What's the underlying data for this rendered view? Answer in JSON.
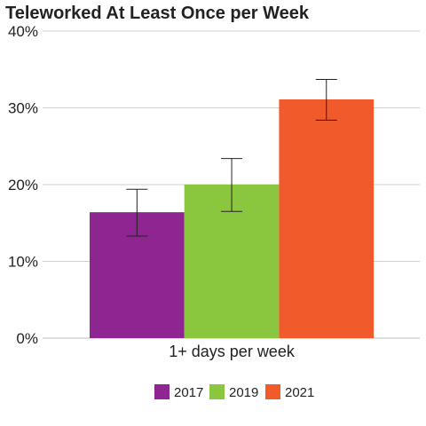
{
  "chart_data": {
    "type": "bar",
    "title": "Teleworked At Least Once per Week",
    "categories": [
      "1+ days per week"
    ],
    "ylim": [
      0,
      40
    ],
    "yticks": [
      "0%",
      "10%",
      "20%",
      "30%",
      "40%"
    ],
    "y_tick_values": [
      0,
      10,
      20,
      30,
      40
    ],
    "grid": true,
    "legend_position": "bottom",
    "series": [
      {
        "name": "2017",
        "color": "#8e2591",
        "values": [
          16.4
        ],
        "error_low": [
          13.3
        ],
        "error_high": [
          19.4
        ]
      },
      {
        "name": "2019",
        "color": "#8bc63f",
        "values": [
          20.0
        ],
        "error_low": [
          16.5
        ],
        "error_high": [
          23.4
        ]
      },
      {
        "name": "2021",
        "color": "#f15a2b",
        "values": [
          31.1
        ],
        "error_low": [
          28.4
        ],
        "error_high": [
          33.7
        ]
      }
    ]
  }
}
